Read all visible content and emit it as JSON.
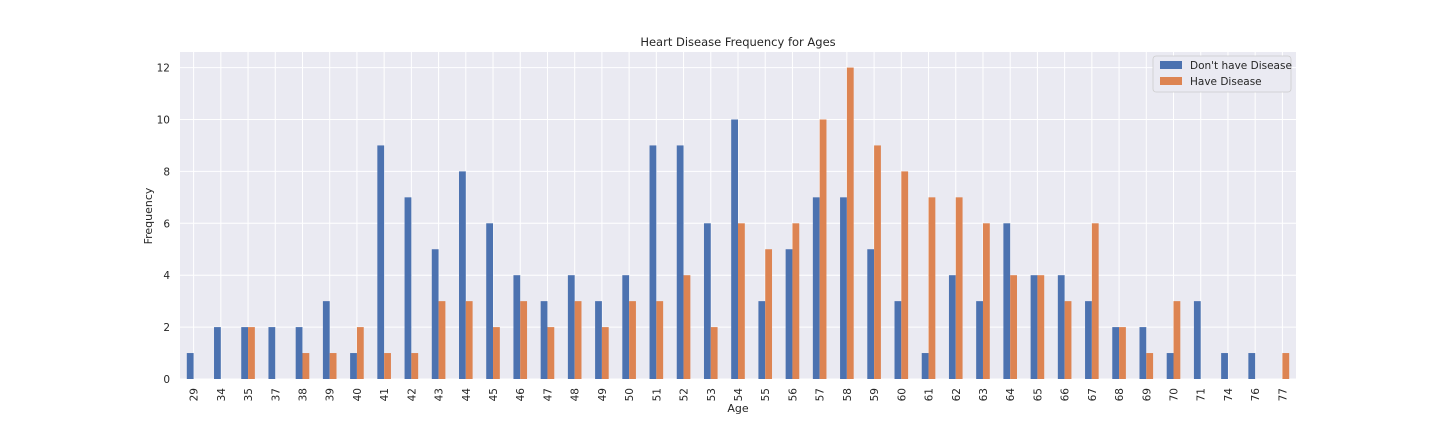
{
  "chart_data": {
    "type": "bar",
    "title": "Heart Disease Frequency for Ages",
    "xlabel": "Age",
    "ylabel": "Frequency",
    "ylim": [
      0,
      12.6
    ],
    "yticks": [
      0,
      2,
      4,
      6,
      8,
      10,
      12
    ],
    "grid": true,
    "legend_position": "top-right",
    "categories": [
      "29",
      "34",
      "35",
      "37",
      "38",
      "39",
      "40",
      "41",
      "42",
      "43",
      "44",
      "45",
      "46",
      "47",
      "48",
      "49",
      "50",
      "51",
      "52",
      "53",
      "54",
      "55",
      "56",
      "57",
      "58",
      "59",
      "60",
      "61",
      "62",
      "63",
      "64",
      "65",
      "66",
      "67",
      "68",
      "69",
      "70",
      "71",
      "74",
      "76",
      "77"
    ],
    "series": [
      {
        "name": "Don't have Disease",
        "color": "#4c72b0",
        "values": [
          1,
          2,
          2,
          2,
          2,
          3,
          1,
          9,
          7,
          5,
          8,
          6,
          4,
          3,
          4,
          3,
          4,
          9,
          9,
          6,
          10,
          3,
          5,
          7,
          7,
          5,
          3,
          1,
          4,
          3,
          6,
          4,
          4,
          3,
          2,
          2,
          1,
          3,
          1,
          1,
          0
        ]
      },
      {
        "name": "Have Disease",
        "color": "#dd8452",
        "values": [
          0,
          0,
          2,
          0,
          1,
          1,
          2,
          1,
          1,
          3,
          3,
          2,
          3,
          2,
          3,
          2,
          3,
          3,
          4,
          2,
          6,
          5,
          6,
          10,
          12,
          9,
          8,
          7,
          7,
          6,
          4,
          4,
          3,
          6,
          2,
          1,
          3,
          0,
          0,
          0,
          1
        ]
      }
    ]
  }
}
